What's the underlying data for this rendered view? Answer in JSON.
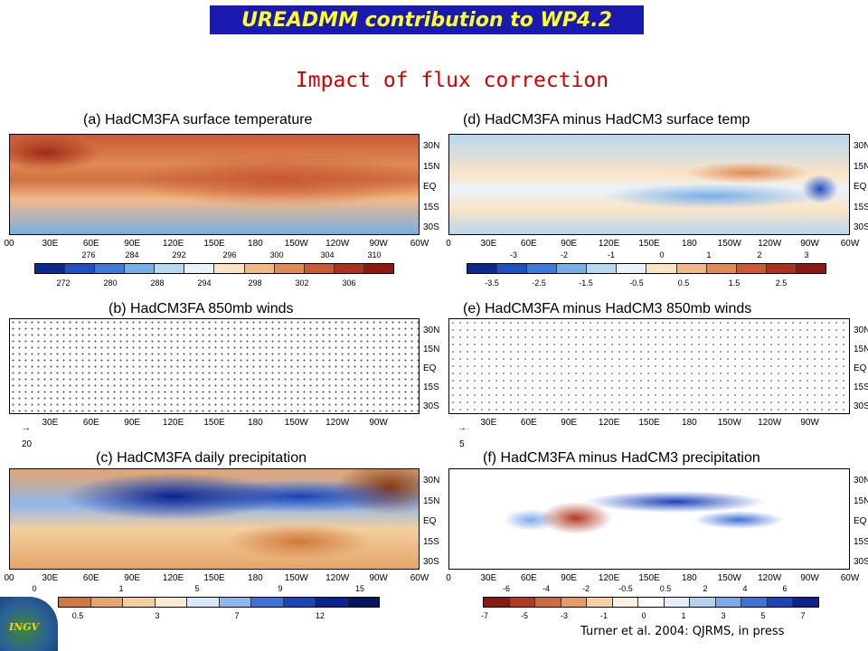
{
  "header": {
    "banner": "UREADMM contribution to WP4.2",
    "subtitle": "Impact of flux correction",
    "credit": "Turner et al. 2004: QJRMS, in press",
    "logo_text": "INGV"
  },
  "axes": {
    "lon_left": [
      "00",
      "30E",
      "60E",
      "90E",
      "120E",
      "150E",
      "180",
      "150W",
      "120W",
      "90W",
      "60W"
    ],
    "lon_right": [
      "0",
      "30E",
      "60E",
      "90E",
      "120E",
      "150E",
      "180",
      "150W",
      "120W",
      "90W",
      "60W"
    ],
    "lon_wind": [
      "30E",
      "60E",
      "90E",
      "120E",
      "150E",
      "180",
      "150W",
      "120W",
      "90W"
    ],
    "lat": [
      "30N",
      "15N",
      "EQ",
      "15S",
      "30S"
    ]
  },
  "panels": {
    "a": {
      "title": "(a) HadCM3FA surface temperature",
      "ticks_top": [
        "276",
        "284",
        "292",
        "296",
        "300",
        "304",
        "310"
      ],
      "ticks_bottom": [
        "272",
        "280",
        "288",
        "294",
        "298",
        "302",
        "306"
      ],
      "colors": [
        "#0a2a8c",
        "#1f4fc0",
        "#3f7ad6",
        "#78aee6",
        "#b6d8f0",
        "#e9f3fb",
        "#fbe4c6",
        "#f1b887",
        "#e08a55",
        "#c85a35",
        "#a83320",
        "#8a1a10"
      ]
    },
    "d": {
      "title": "(d) HadCM3FA minus HadCM3 surface temp",
      "ticks_top": [
        "-3",
        "-2",
        "-1",
        "0",
        "1",
        "2",
        "3"
      ],
      "ticks_bottom": [
        "-3.5",
        "-2.5",
        "-1.5",
        "-0.5",
        "0.5",
        "1.5",
        "2.5"
      ],
      "colors": [
        "#0a2a8c",
        "#1f4fc0",
        "#3f7ad6",
        "#78aee6",
        "#b6d8f0",
        "#e9f3fb",
        "#fbe4c6",
        "#f1b887",
        "#e08a55",
        "#c85a35",
        "#a83320",
        "#8a1a10"
      ]
    },
    "b": {
      "title": "(b) HadCM3FA 850mb winds",
      "vector": "20"
    },
    "e": {
      "title": "(e) HadCM3FA minus HadCM3 850mb winds",
      "vector": "5"
    },
    "c": {
      "title": "(c) HadCM3FA daily precipitation",
      "ticks_top": [
        "0",
        "1",
        "5",
        "9",
        "15"
      ],
      "ticks_bottom": [
        "0.5",
        "3",
        "7",
        "12"
      ],
      "colors": [
        "#cf7a3c",
        "#e6a56a",
        "#f3cf9f",
        "#fbead0",
        "#d9e8f8",
        "#8fb7ec",
        "#3f72d8",
        "#1a44b8",
        "#0a2390",
        "#061562"
      ]
    },
    "f": {
      "title": "(f) HadCM3FA minus HadCM3 precipitation",
      "ticks_top": [
        "-6",
        "-4",
        "-2",
        "-0.5",
        "0.5",
        "2",
        "4",
        "6"
      ],
      "ticks_bottom": [
        "-7",
        "-5",
        "-3",
        "-1",
        "0",
        "1",
        "3",
        "5",
        "7"
      ],
      "colors": [
        "#8a1a10",
        "#b03a22",
        "#cf6a3e",
        "#e69a66",
        "#f6cfa8",
        "#fdf0e2",
        "#ffffff",
        "#e4eefb",
        "#b4d0f3",
        "#7ea9e8",
        "#3f72d8",
        "#1a44b8",
        "#0a2390"
      ]
    }
  }
}
